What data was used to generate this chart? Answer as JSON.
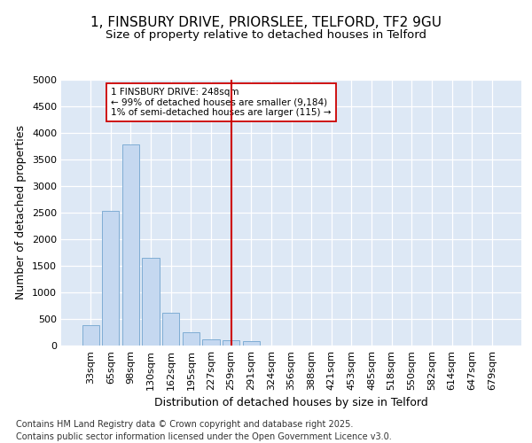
{
  "title_line1": "1, FINSBURY DRIVE, PRIORSLEE, TELFORD, TF2 9GU",
  "title_line2": "Size of property relative to detached houses in Telford",
  "xlabel": "Distribution of detached houses by size in Telford",
  "ylabel": "Number of detached properties",
  "categories": [
    "33sqm",
    "65sqm",
    "98sqm",
    "130sqm",
    "162sqm",
    "195sqm",
    "227sqm",
    "259sqm",
    "291sqm",
    "324sqm",
    "356sqm",
    "388sqm",
    "421sqm",
    "453sqm",
    "485sqm",
    "518sqm",
    "550sqm",
    "582sqm",
    "614sqm",
    "647sqm",
    "679sqm"
  ],
  "values": [
    380,
    2540,
    3780,
    1650,
    620,
    250,
    120,
    100,
    80,
    0,
    0,
    0,
    0,
    0,
    0,
    0,
    0,
    0,
    0,
    0,
    0
  ],
  "bar_color": "#c5d8f0",
  "bar_edge_color": "#7fadd4",
  "vline_index": 7,
  "vline_color": "#cc0000",
  "annotation_text": "1 FINSBURY DRIVE: 248sqm\n← 99% of detached houses are smaller (9,184)\n1% of semi-detached houses are larger (115) →",
  "annotation_box_facecolor": "#ffffff",
  "annotation_box_edgecolor": "#cc0000",
  "ylim": [
    0,
    5000
  ],
  "yticks": [
    0,
    500,
    1000,
    1500,
    2000,
    2500,
    3000,
    3500,
    4000,
    4500,
    5000
  ],
  "background_color": "#dde8f5",
  "grid_color": "#ffffff",
  "footer": "Contains HM Land Registry data © Crown copyright and database right 2025.\nContains public sector information licensed under the Open Government Licence v3.0.",
  "title_fontsize": 11,
  "subtitle_fontsize": 9.5,
  "axis_label_fontsize": 9,
  "tick_fontsize": 8,
  "annotation_fontsize": 7.5,
  "footer_fontsize": 7
}
